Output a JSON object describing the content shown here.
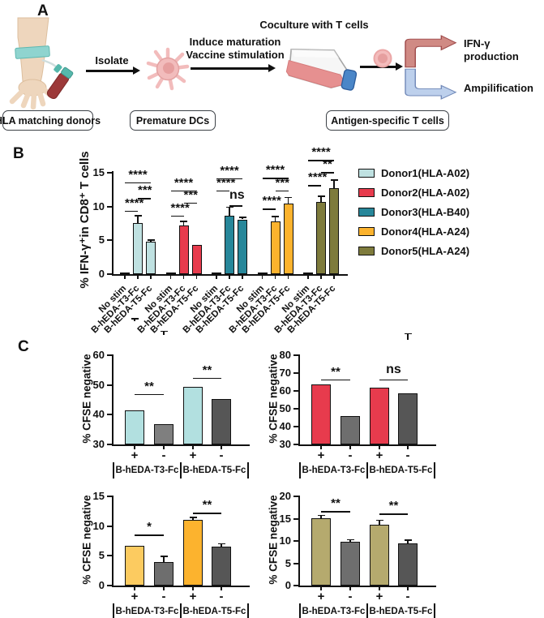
{
  "panels": {
    "a_label": "A",
    "b_label": "B",
    "c_label": "C"
  },
  "panelA": {
    "donor_box": "HLA matching donors",
    "dc_box": "Premature DCs",
    "tcell_box": "Antigen-specific T cells",
    "isolate_label": "Isolate",
    "maturation_line1": "Induce maturation",
    "maturation_line2": "Vaccine stimulation",
    "coculture_title": "Coculture with T cells",
    "ifn_label": "IFN-γ production",
    "amplification_label": "Ampilification",
    "colors": {
      "ifn_arrow_fill": "#d08a84",
      "ifn_arrow_border": "#9e4a4a",
      "amp_arrow_fill": "#bdd0ec",
      "amp_arrow_border": "#7189b8"
    }
  },
  "chart_data": [
    {
      "id": "B",
      "type": "bar",
      "ylabel": "% IFN-γ⁺in CD8⁺ T cells",
      "ylim": [
        0,
        15
      ],
      "yticks": [
        0,
        5,
        10,
        15
      ],
      "grid": false,
      "legend_position": "right",
      "categories": [
        "No stim",
        "B-hEDA-T3-Fc",
        "B-hEDA-T5-Fc"
      ],
      "series": [
        {
          "name": "Donor1(HLA-A02)",
          "color": "#bfe1e1",
          "values": [
            0.1,
            7.6,
            4.8
          ],
          "errors": [
            0.05,
            1.0,
            0.25
          ]
        },
        {
          "name": "Donor2(HLA-A02)",
          "color": "#e73b4d",
          "values": [
            0.15,
            7.2,
            4.3
          ],
          "errors": [
            0.05,
            0.6,
            0.15
          ]
        },
        {
          "name": "Donor3(HLA-B40)",
          "color": "#27879a",
          "values": [
            0.1,
            8.7,
            8.1
          ],
          "errors": [
            0.05,
            1.2,
            0.25
          ]
        },
        {
          "name": "Donor4(HLA-A24)",
          "color": "#fcb32e",
          "values": [
            0.2,
            7.8,
            10.4
          ],
          "errors": [
            0.05,
            0.7,
            0.9
          ]
        },
        {
          "name": "Donor5(HLA-A24)",
          "color": "#7e7b3c",
          "values": [
            0.1,
            10.7,
            12.7
          ],
          "errors": [
            0.05,
            0.8,
            1.2
          ]
        }
      ],
      "significance": [
        [
          {
            "pair": [
              0,
              1
            ],
            "label": "****",
            "y": 9.4
          },
          {
            "pair": [
              1,
              2
            ],
            "label": "***",
            "y": 11.3
          },
          {
            "pair": [
              0,
              2
            ],
            "label": "****",
            "y": 13.6
          }
        ],
        [
          {
            "pair": [
              0,
              1
            ],
            "label": "****",
            "y": 8.7
          },
          {
            "pair": [
              1,
              2
            ],
            "label": "***",
            "y": 10.6
          },
          {
            "pair": [
              0,
              2
            ],
            "label": "****",
            "y": 12.4
          }
        ],
        [
          {
            "pair": [
              0,
              1
            ],
            "label": "****",
            "y": 12.4
          },
          {
            "pair": [
              1,
              2
            ],
            "label": "ns",
            "y": 10.2
          },
          {
            "pair": [
              0,
              2
            ],
            "label": "****",
            "y": 14.2
          }
        ],
        [
          {
            "pair": [
              0,
              1
            ],
            "label": "****",
            "y": 9.7
          },
          {
            "pair": [
              1,
              2
            ],
            "label": "***",
            "y": 12.4
          },
          {
            "pair": [
              0,
              2
            ],
            "label": "****",
            "y": 14.3
          }
        ],
        [
          {
            "pair": [
              0,
              1
            ],
            "label": "****",
            "y": 13.2
          },
          {
            "pair": [
              1,
              2
            ],
            "label": "**",
            "y": 15.1
          },
          {
            "pair": [
              0,
              2
            ],
            "label": "****",
            "y": 16.9
          }
        ]
      ]
    },
    {
      "id": "C1",
      "type": "bar",
      "ylabel": "% CFSE negative",
      "ylim": [
        30,
        60
      ],
      "yticks": [
        30,
        40,
        50,
        60
      ],
      "groups": [
        "B-hEDA-T3-Fc",
        "B-hEDA-T5-Fc"
      ],
      "bars": [
        {
          "sign": "+",
          "value": 41.5,
          "err": 0.8,
          "color": "#b2e0e0"
        },
        {
          "sign": "-",
          "value": 36.8,
          "err": 1.2,
          "color": "#7f7f7f"
        },
        {
          "sign": "+",
          "value": 49.5,
          "err": 0.3,
          "color": "#b2e0e0"
        },
        {
          "sign": "-",
          "value": 45.2,
          "err": 0.4,
          "color": "#565656"
        }
      ],
      "significance": [
        {
          "pair": [
            0,
            1
          ],
          "label": "**",
          "y": 47
        },
        {
          "pair": [
            2,
            3
          ],
          "label": "**",
          "y": 52.5
        }
      ]
    },
    {
      "id": "C2",
      "type": "bar",
      "ylabel": "% CFSE negative",
      "ylim": [
        30,
        80
      ],
      "yticks": [
        30,
        40,
        50,
        60,
        70,
        80
      ],
      "groups": [
        "B-hEDA-T3-Fc",
        "B-hEDA-T5-Fc"
      ],
      "bars": [
        {
          "sign": "+",
          "value": 63.5,
          "err": 0.5,
          "color": "#e73b4d"
        },
        {
          "sign": "-",
          "value": 46.0,
          "err": 0.4,
          "color": "#6e6e6e"
        },
        {
          "sign": "+",
          "value": 62.0,
          "err": 0.8,
          "color": "#e73b4d"
        },
        {
          "sign": "-",
          "value": 58.5,
          "err": 3.5,
          "color": "#565656"
        }
      ],
      "significance": [
        {
          "pair": [
            0,
            1
          ],
          "label": "**",
          "y": 66.5
        },
        {
          "pair": [
            2,
            3
          ],
          "label": "ns",
          "y": 66.5
        }
      ]
    },
    {
      "id": "C3",
      "type": "bar",
      "ylabel": "% CFSE negative",
      "ylim": [
        0,
        15
      ],
      "yticks": [
        0,
        5,
        10,
        15
      ],
      "groups": [
        "B-hEDA-T3-Fc",
        "B-hEDA-T5-Fc"
      ],
      "bars": [
        {
          "sign": "+",
          "value": 6.7,
          "err": 0.2,
          "color": "#fccb60"
        },
        {
          "sign": "-",
          "value": 3.9,
          "err": 1.0,
          "color": "#6e6e6e"
        },
        {
          "sign": "+",
          "value": 11.1,
          "err": 0.3,
          "color": "#fcb32e"
        },
        {
          "sign": "-",
          "value": 6.6,
          "err": 0.4,
          "color": "#565656"
        }
      ],
      "significance": [
        {
          "pair": [
            0,
            1
          ],
          "label": "*",
          "y": 8.6
        },
        {
          "pair": [
            2,
            3
          ],
          "label": "**",
          "y": 12.3
        }
      ]
    },
    {
      "id": "C4",
      "type": "bar",
      "ylabel": "% CFSE negative",
      "ylim": [
        0,
        20
      ],
      "yticks": [
        0,
        5,
        10,
        15,
        20
      ],
      "groups": [
        "B-hEDA-T3-Fc",
        "B-hEDA-T5-Fc"
      ],
      "bars": [
        {
          "sign": "+",
          "value": 15.1,
          "err": 0.6,
          "color": "#b5aa6e"
        },
        {
          "sign": "-",
          "value": 9.8,
          "err": 0.4,
          "color": "#6e6e6e"
        },
        {
          "sign": "+",
          "value": 13.6,
          "err": 1.0,
          "color": "#b5aa6e"
        },
        {
          "sign": "-",
          "value": 9.5,
          "err": 0.6,
          "color": "#565656"
        }
      ],
      "significance": [
        {
          "pair": [
            0,
            1
          ],
          "label": "**",
          "y": 16.7
        },
        {
          "pair": [
            2,
            3
          ],
          "label": "**",
          "y": 16.2
        }
      ]
    }
  ]
}
